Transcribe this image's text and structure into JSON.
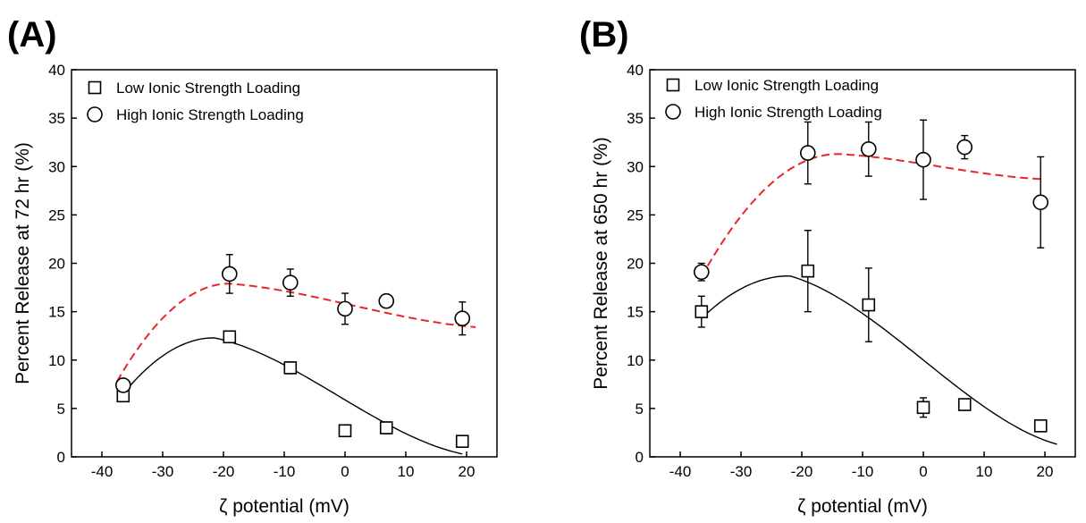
{
  "chart_data": [
    {
      "type": "scatter",
      "panel_label": "(A)",
      "xlabel": "ζ potential (mV)",
      "ylabel": "Percent Release at 72 hr (%)",
      "xlim": [
        -45,
        25
      ],
      "ylim": [
        0,
        40
      ],
      "x_ticks": [
        -40,
        -30,
        -20,
        -10,
        0,
        10,
        20
      ],
      "y_ticks": [
        0,
        5,
        10,
        15,
        20,
        25,
        30,
        35,
        40
      ],
      "legend_position": "top-left",
      "series": [
        {
          "name": "Low Ionic Strength Loading",
          "marker": "square",
          "points": [
            {
              "x": -36.5,
              "y": 6.3,
              "err": 0.5
            },
            {
              "x": -19,
              "y": 12.4,
              "err": 0.6
            },
            {
              "x": -9,
              "y": 9.2,
              "err": 0.6
            },
            {
              "x": 0,
              "y": 2.7,
              "err": 0.4
            },
            {
              "x": 6.8,
              "y": 3.0,
              "err": 0.6
            },
            {
              "x": 19.3,
              "y": 1.6,
              "err": 0.6
            }
          ],
          "fit": {
            "style": "solid",
            "color": "#000000",
            "x_range": [
              -37,
              19.3
            ],
            "peak_x": -21.5,
            "peak_y": 12.3,
            "start_y": 6.1,
            "end_y": 0.3
          }
        },
        {
          "name": "High Ionic Strength Loading",
          "marker": "circle",
          "points": [
            {
              "x": -36.5,
              "y": 7.4,
              "err": 0.6
            },
            {
              "x": -19,
              "y": 18.9,
              "err": 2.0
            },
            {
              "x": -9,
              "y": 18.0,
              "err": 1.4
            },
            {
              "x": 0,
              "y": 15.3,
              "err": 1.6
            },
            {
              "x": 6.8,
              "y": 16.1,
              "err": 0.4
            },
            {
              "x": 19.3,
              "y": 14.3,
              "err": 1.7
            }
          ],
          "fit": {
            "style": "dashed",
            "color": "#e8262b",
            "x_range": [
              -37.5,
              21.5
            ],
            "peak_x": -19,
            "peak_y": 17.9,
            "start_y": 7.8,
            "end_y": 13.4
          }
        }
      ]
    },
    {
      "type": "scatter",
      "panel_label": "(B)",
      "xlabel": "ζ potential (mV)",
      "ylabel": "Percent Release at 650 hr (%)",
      "xlim": [
        -45,
        25
      ],
      "ylim": [
        0,
        40
      ],
      "x_ticks": [
        -40,
        -30,
        -20,
        -10,
        0,
        10,
        20
      ],
      "y_ticks": [
        0,
        5,
        10,
        15,
        20,
        25,
        30,
        35,
        40
      ],
      "legend_position": "top-left",
      "series": [
        {
          "name": "Low Ionic Strength Loading",
          "marker": "square",
          "points": [
            {
              "x": -36.5,
              "y": 15.0,
              "err": 1.6
            },
            {
              "x": -19,
              "y": 19.2,
              "err": 4.2
            },
            {
              "x": -9,
              "y": 15.7,
              "err": 3.8
            },
            {
              "x": 0,
              "y": 5.1,
              "err": 1.0
            },
            {
              "x": 6.8,
              "y": 5.4,
              "err": 0.5
            },
            {
              "x": 19.3,
              "y": 3.2,
              "err": 0.5
            }
          ],
          "fit": {
            "style": "solid",
            "color": "#000000",
            "x_range": [
              -36.5,
              22
            ],
            "peak_x": -22,
            "peak_y": 18.7,
            "start_y": 14.3,
            "end_y": 1.3
          }
        },
        {
          "name": "High Ionic Strength Loading",
          "marker": "circle",
          "points": [
            {
              "x": -36.5,
              "y": 19.1,
              "err": 0.9
            },
            {
              "x": -19,
              "y": 31.4,
              "err": 3.2
            },
            {
              "x": -9,
              "y": 31.8,
              "err": 2.8
            },
            {
              "x": 0,
              "y": 30.7,
              "err": 4.1
            },
            {
              "x": 6.8,
              "y": 32.0,
              "err": 1.2
            },
            {
              "x": 19.3,
              "y": 26.3,
              "err": 4.7
            }
          ],
          "fit": {
            "style": "dashed",
            "color": "#e8262b",
            "x_range": [
              -36.5,
              19.3
            ],
            "peak_x": -14,
            "peak_y": 31.3,
            "start_y": 18.6,
            "end_y": 28.7
          }
        }
      ]
    }
  ]
}
